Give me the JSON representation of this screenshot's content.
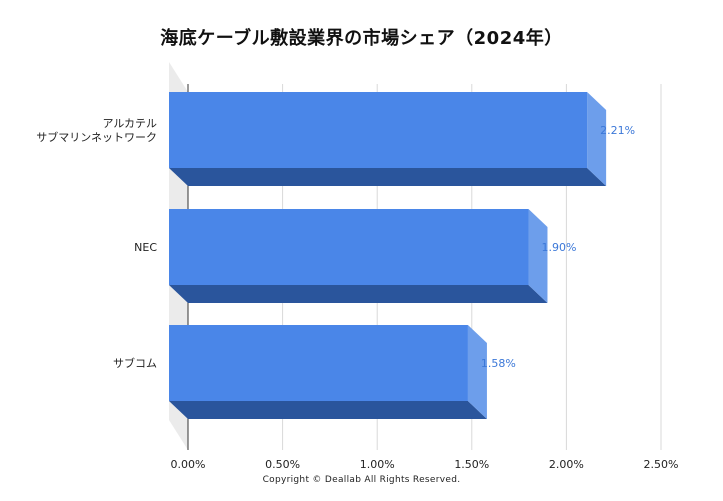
{
  "chart_data": {
    "type": "bar",
    "orientation": "horizontal",
    "title": "海底ケーブル敷設業界の市場シェア（2024年）",
    "categories": [
      [
        "アルカテル",
        "サブマリンネットワーク"
      ],
      [
        "NEC"
      ],
      [
        "サブコム"
      ]
    ],
    "values": [
      2.21,
      1.9,
      1.58
    ],
    "data_labels": [
      "2.21%",
      "1.90%",
      "1.58%"
    ],
    "xlim": [
      0,
      2.5
    ],
    "x_ticks": [
      "0.00%",
      "0.50%",
      "1.00%",
      "1.50%",
      "2.00%",
      "2.50%"
    ],
    "x_tick_values": [
      0,
      0.5,
      1.0,
      1.5,
      2.0,
      2.5
    ],
    "grid": true,
    "style_3d": true,
    "legend": "none",
    "colors": {
      "bar_front": "#4a86e8",
      "bar_bottom": "#2a559c",
      "bar_side": "#6d9eeb",
      "grid": "#d9d9d9",
      "wall": "#ebebeb",
      "label": "#3c78d8"
    }
  },
  "footer": {
    "copyright": "Copyright © Deallab All Rights Reserved."
  }
}
